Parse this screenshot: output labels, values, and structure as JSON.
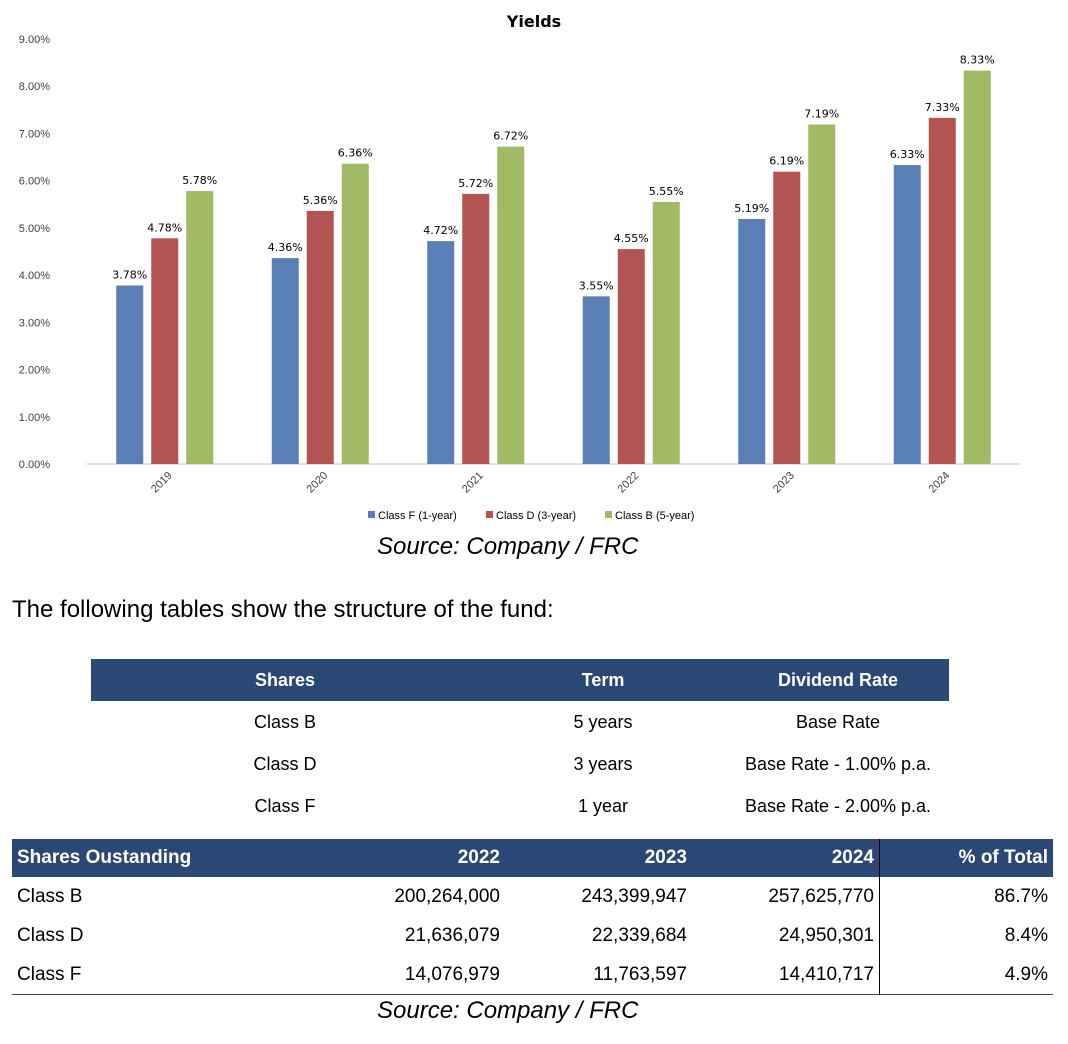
{
  "chart_data": {
    "type": "bar",
    "title": "Yields",
    "xlabel": "",
    "ylabel": "",
    "categories": [
      "2019",
      "2020",
      "2021",
      "2022",
      "2023",
      "2024"
    ],
    "series": [
      {
        "name": "Class F (1-year)",
        "color": "#5a7fb6",
        "values": [
          3.78,
          4.36,
          4.72,
          3.55,
          5.19,
          6.33
        ],
        "labels": [
          "3.78%",
          "4.36%",
          "4.72%",
          "3.55%",
          "5.19%",
          "6.33%"
        ]
      },
      {
        "name": "Class D (3-year)",
        "color": "#b25552",
        "values": [
          4.78,
          5.36,
          5.72,
          4.55,
          6.19,
          7.33
        ],
        "labels": [
          "4.78%",
          "5.36%",
          "5.72%",
          "4.55%",
          "6.19%",
          "7.33%"
        ]
      },
      {
        "name": "Class B (5-year)",
        "color": "#a1ba64",
        "values": [
          5.78,
          6.36,
          6.72,
          5.55,
          7.19,
          8.33
        ],
        "labels": [
          "5.78%",
          "6.36%",
          "6.72%",
          "5.55%",
          "7.19%",
          "8.33%"
        ]
      }
    ],
    "ylim": [
      0,
      9
    ],
    "yticks": [
      0,
      1,
      2,
      3,
      4,
      5,
      6,
      7,
      8,
      9
    ],
    "ytick_labels": [
      "0.00%",
      "1.00%",
      "2.00%",
      "3.00%",
      "4.00%",
      "5.00%",
      "6.00%",
      "7.00%",
      "8.00%",
      "9.00%"
    ],
    "grid": false,
    "legend_position": "bottom"
  },
  "chart_source": "Source: Company / FRC",
  "intro_text": "The following tables show the structure of the fund:",
  "structure_table": {
    "headers": [
      "Shares",
      "Term",
      "Dividend Rate"
    ],
    "rows": [
      [
        "Class B",
        "5 years",
        "Base Rate"
      ],
      [
        "Class D",
        "3 years",
        "Base Rate - 1.00% p.a."
      ],
      [
        "Class F",
        "1 year",
        "Base Rate - 2.00% p.a."
      ]
    ]
  },
  "shares_table": {
    "headers": [
      "Shares Oustanding",
      "2022",
      "2023",
      "2024",
      "% of Total"
    ],
    "rows": [
      [
        "Class B",
        "200,264,000",
        "243,399,947",
        "257,625,770",
        "86.7%"
      ],
      [
        "Class D",
        "21,636,079",
        "22,339,684",
        "24,950,301",
        "8.4%"
      ],
      [
        "Class F",
        "14,076,979",
        "11,763,597",
        "14,410,717",
        "4.9%"
      ]
    ]
  },
  "table_source": "Source: Company / FRC",
  "colors": {
    "header_bg": "#2a4776",
    "axis": "#d9d9d9"
  }
}
